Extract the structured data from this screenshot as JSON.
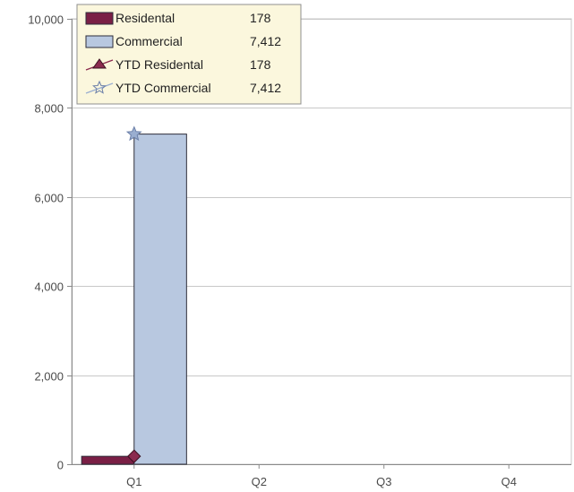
{
  "chart_data": {
    "type": "bar",
    "categories": [
      "Q1",
      "Q2",
      "Q3",
      "Q4"
    ],
    "ylim": [
      0,
      10000
    ],
    "yticks": [
      0,
      2000,
      4000,
      6000,
      8000,
      10000
    ],
    "ytick_labels": [
      "0",
      "2,000",
      "4,000",
      "6,000",
      "8,000",
      "10,000"
    ],
    "grid": true,
    "legend_position": "top-left",
    "series": [
      {
        "name": "Residental",
        "kind": "bar",
        "color": "#7a1f45",
        "values": [
          178,
          null,
          null,
          null
        ],
        "legend_value": "178"
      },
      {
        "name": "Commercial",
        "kind": "bar",
        "color": "#b8c8e0",
        "values": [
          7412,
          null,
          null,
          null
        ],
        "legend_value": "7,412"
      },
      {
        "name": "YTD Residental",
        "kind": "line",
        "marker": "diamond",
        "color": "#8b2b4f",
        "values": [
          178,
          null,
          null,
          null
        ],
        "legend_value": "178"
      },
      {
        "name": "YTD Commercial",
        "kind": "line",
        "marker": "star",
        "color": "#9aaed0",
        "values": [
          7412,
          null,
          null,
          null
        ],
        "legend_value": "7,412"
      }
    ]
  }
}
